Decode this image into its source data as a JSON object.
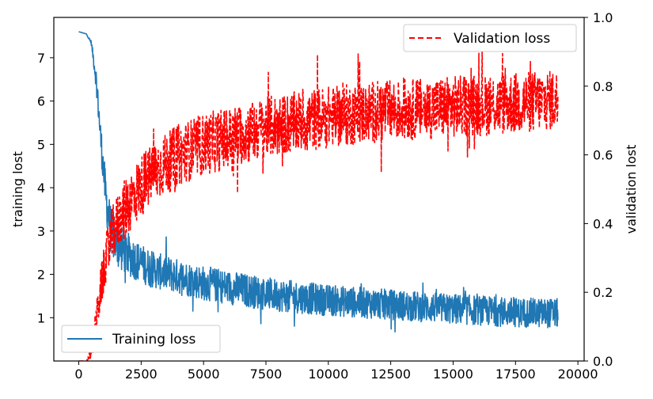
{
  "chart_data": {
    "type": "line",
    "x_axis": {
      "ticks": [
        0,
        2500,
        5000,
        7500,
        10000,
        12500,
        15000,
        17500,
        20000
      ],
      "tick_labels": [
        "0",
        "2500",
        "5000",
        "7500",
        "10000",
        "12500",
        "15000",
        "17500",
        "20000"
      ],
      "range": [
        -1000,
        20250
      ]
    },
    "y_left": {
      "label": "training lost",
      "ticks": [
        1,
        2,
        3,
        4,
        5,
        6,
        7
      ],
      "tick_labels": [
        "1",
        "2",
        "3",
        "4",
        "5",
        "6",
        "7"
      ],
      "range": [
        0.0,
        7.93
      ]
    },
    "y_right": {
      "label": "validation lost",
      "ticks": [
        0.0,
        0.2,
        0.4,
        0.6,
        0.8,
        1.0
      ],
      "tick_labels": [
        "0.0",
        "0.2",
        "0.4",
        "0.6",
        "0.8",
        "1.0"
      ],
      "range": [
        0.0,
        1.0
      ]
    },
    "grid": false,
    "series": [
      {
        "name": "Training loss",
        "axis": "left",
        "color": "#1f77b4",
        "style": "solid",
        "x": [
          0,
          300,
          500,
          700,
          900,
          1100,
          1300,
          1500,
          2000,
          2500,
          3000,
          4000,
          5000,
          7500,
          10000,
          12500,
          15000,
          17500,
          19200
        ],
        "y": [
          7.6,
          7.55,
          7.35,
          6.5,
          5.0,
          3.7,
          3.0,
          2.7,
          2.45,
          2.25,
          2.1,
          1.95,
          1.8,
          1.55,
          1.4,
          1.3,
          1.2,
          1.12,
          1.1
        ],
        "noise_band": [
          0,
          0,
          0.05,
          0.25,
          0.4,
          0.5,
          0.55,
          0.55,
          0.5,
          0.45,
          0.42,
          0.4,
          0.4,
          0.38,
          0.36,
          0.35,
          0.35,
          0.34,
          0.34
        ]
      },
      {
        "name": "Validation loss",
        "axis": "right",
        "color": "#ff0000",
        "style": "dashed",
        "x": [
          0,
          300,
          500,
          700,
          900,
          1100,
          1300,
          1500,
          2000,
          2500,
          3000,
          4000,
          5000,
          7500,
          10000,
          12500,
          15000,
          17500,
          19200
        ],
        "y": [
          0.0,
          0.0,
          0.02,
          0.12,
          0.22,
          0.3,
          0.36,
          0.4,
          0.46,
          0.51,
          0.55,
          0.6,
          0.63,
          0.68,
          0.71,
          0.73,
          0.74,
          0.75,
          0.76
        ],
        "noise_band": [
          0,
          0,
          0.02,
          0.05,
          0.06,
          0.07,
          0.08,
          0.08,
          0.09,
          0.09,
          0.09,
          0.09,
          0.09,
          0.09,
          0.09,
          0.09,
          0.09,
          0.09,
          0.09
        ]
      }
    ],
    "legends": [
      {
        "series": "Validation loss",
        "label": "Validation loss",
        "placement": "upper-right"
      },
      {
        "series": "Training loss",
        "label": "Training loss",
        "placement": "lower-left"
      }
    ]
  }
}
